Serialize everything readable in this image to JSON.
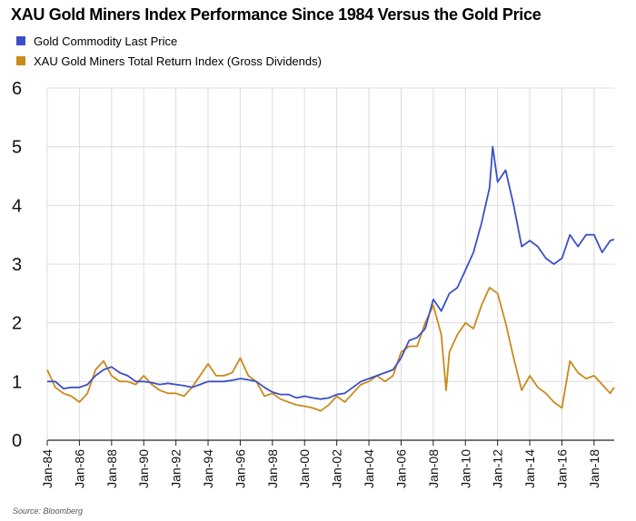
{
  "chart_data": {
    "type": "line",
    "title": "XAU Gold Miners Index Performance Since 1984 Versus the Gold Price",
    "xlabel": "",
    "ylabel": "",
    "ylim": [
      0,
      6
    ],
    "yticks": [
      "0",
      "1",
      "2",
      "3",
      "4",
      "5",
      "6"
    ],
    "xticks": [
      "Jan-84",
      "Jan-86",
      "Jan-88",
      "Jan-90",
      "Jan-92",
      "Jan-94",
      "Jan-96",
      "Jan-98",
      "Jan-00",
      "Jan-02",
      "Jan-04",
      "Jan-06",
      "Jan-08",
      "Jan-10",
      "Jan-12",
      "Jan-14",
      "Jan-16",
      "Jan-18"
    ],
    "xrange": [
      1984.0,
      2019.25
    ],
    "grid": true,
    "legend_position": "top-left",
    "series": [
      {
        "name": "Gold Commodity Last Price",
        "color": "#3b50c6",
        "x": [
          1984.0,
          1984.5,
          1985.0,
          1985.5,
          1986.0,
          1986.5,
          1987.0,
          1987.5,
          1988.0,
          1988.5,
          1989.0,
          1989.5,
          1990.0,
          1990.5,
          1991.0,
          1991.5,
          1992.0,
          1992.5,
          1993.0,
          1993.5,
          1994.0,
          1994.5,
          1995.0,
          1995.5,
          1996.0,
          1996.5,
          1997.0,
          1997.5,
          1998.0,
          1998.5,
          1999.0,
          1999.5,
          2000.0,
          2000.5,
          2001.0,
          2001.5,
          2002.0,
          2002.5,
          2003.0,
          2003.5,
          2004.0,
          2004.5,
          2005.0,
          2005.5,
          2006.0,
          2006.5,
          2007.0,
          2007.5,
          2008.0,
          2008.5,
          2009.0,
          2009.5,
          2010.0,
          2010.5,
          2011.0,
          2011.5,
          2011.7,
          2012.0,
          2012.5,
          2013.0,
          2013.5,
          2014.0,
          2014.5,
          2015.0,
          2015.5,
          2016.0,
          2016.5,
          2017.0,
          2017.5,
          2018.0,
          2018.5,
          2019.0,
          2019.25
        ],
        "y": [
          1.0,
          1.0,
          0.88,
          0.9,
          0.9,
          0.95,
          1.1,
          1.2,
          1.25,
          1.15,
          1.1,
          1.0,
          1.0,
          0.98,
          0.95,
          0.97,
          0.95,
          0.93,
          0.9,
          0.95,
          1.0,
          1.0,
          1.0,
          1.02,
          1.05,
          1.03,
          1.0,
          0.9,
          0.82,
          0.78,
          0.78,
          0.72,
          0.75,
          0.72,
          0.7,
          0.72,
          0.78,
          0.8,
          0.9,
          1.0,
          1.05,
          1.1,
          1.15,
          1.2,
          1.4,
          1.7,
          1.75,
          1.9,
          2.4,
          2.2,
          2.5,
          2.6,
          2.9,
          3.2,
          3.7,
          4.3,
          5.0,
          4.4,
          4.6,
          4.0,
          3.3,
          3.4,
          3.3,
          3.1,
          3.0,
          3.1,
          3.5,
          3.3,
          3.5,
          3.5,
          3.2,
          3.4,
          3.42
        ]
      },
      {
        "name": "XAU Gold Miners Total Return Index (Gross Dividends)",
        "color": "#c98a1c",
        "x": [
          1984.0,
          1984.5,
          1985.0,
          1985.5,
          1986.0,
          1986.5,
          1987.0,
          1987.5,
          1988.0,
          1988.5,
          1989.0,
          1989.5,
          1990.0,
          1990.5,
          1991.0,
          1991.5,
          1992.0,
          1992.5,
          1993.0,
          1993.5,
          1994.0,
          1994.5,
          1995.0,
          1995.5,
          1996.0,
          1996.5,
          1997.0,
          1997.5,
          1998.0,
          1998.5,
          1999.0,
          1999.5,
          2000.0,
          2000.5,
          2001.0,
          2001.5,
          2002.0,
          2002.5,
          2003.0,
          2003.5,
          2004.0,
          2004.5,
          2005.0,
          2005.5,
          2006.0,
          2006.5,
          2007.0,
          2007.5,
          2008.0,
          2008.5,
          2008.8,
          2009.0,
          2009.5,
          2010.0,
          2010.5,
          2011.0,
          2011.5,
          2012.0,
          2012.5,
          2013.0,
          2013.5,
          2014.0,
          2014.5,
          2015.0,
          2015.5,
          2016.0,
          2016.5,
          2017.0,
          2017.5,
          2018.0,
          2018.5,
          2019.0,
          2019.25
        ],
        "y": [
          1.2,
          0.9,
          0.8,
          0.75,
          0.65,
          0.8,
          1.2,
          1.35,
          1.1,
          1.0,
          1.0,
          0.95,
          1.1,
          0.95,
          0.85,
          0.8,
          0.8,
          0.75,
          0.9,
          1.1,
          1.3,
          1.1,
          1.1,
          1.15,
          1.4,
          1.1,
          1.0,
          0.75,
          0.8,
          0.7,
          0.65,
          0.6,
          0.58,
          0.55,
          0.5,
          0.6,
          0.75,
          0.65,
          0.8,
          0.95,
          1.0,
          1.1,
          1.0,
          1.1,
          1.5,
          1.6,
          1.6,
          2.0,
          2.3,
          1.8,
          0.85,
          1.5,
          1.8,
          2.0,
          1.9,
          2.3,
          2.6,
          2.5,
          2.0,
          1.4,
          0.85,
          1.1,
          0.9,
          0.8,
          0.65,
          0.55,
          1.35,
          1.15,
          1.05,
          1.1,
          0.95,
          0.8,
          0.9
        ]
      }
    ]
  },
  "footer": {
    "source": "Source: Bloomberg"
  }
}
